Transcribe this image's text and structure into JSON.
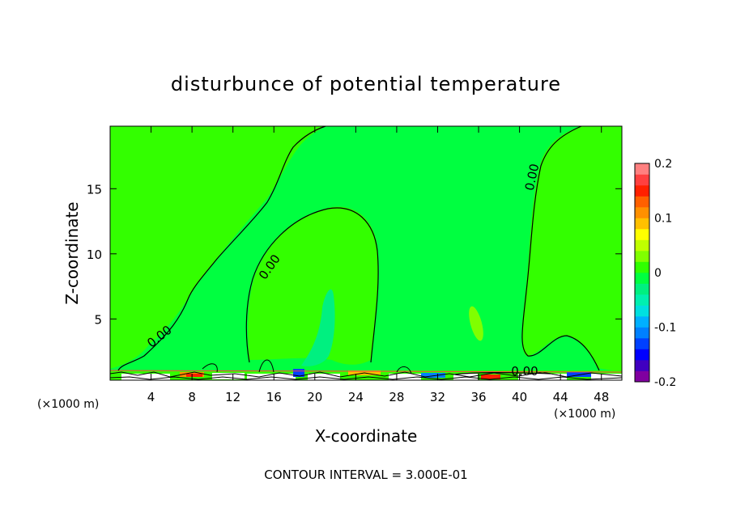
{
  "chart_data": {
    "type": "heatmap",
    "title": "disturbunce of potential temperature",
    "xlabel": "X-coordinate",
    "ylabel": "Z-coordinate",
    "x_unit_left": "(×1000 m)",
    "x_unit_right": "(×1000 m)",
    "footer": "CONTOUR INTERVAL = 3.000E-01",
    "xlim": [
      0,
      50
    ],
    "ylim": [
      0.3,
      19.8
    ],
    "x_ticks": [
      4,
      8,
      12,
      16,
      20,
      24,
      28,
      32,
      36,
      40,
      44,
      48
    ],
    "x_tick_labels": [
      "4",
      "8",
      "12",
      "16",
      "20",
      "24",
      "28",
      "32",
      "36",
      "40",
      "44",
      "48"
    ],
    "y_ticks": [
      5,
      10,
      15
    ],
    "y_tick_labels": [
      "5",
      "10",
      "15"
    ],
    "contour_labels": [
      "0.00",
      "0.00",
      "0.00",
      "0.00"
    ],
    "colorbar": {
      "min": -0.2,
      "max": 0.2,
      "tick_values": [
        -0.2,
        -0.1,
        0,
        0.1,
        0.2
      ],
      "tick_labels": [
        "-0.2",
        "-0.1",
        "0",
        "0.1",
        "0.2"
      ],
      "colors": [
        "#8000a0",
        "#4000c0",
        "#0000ff",
        "#0040ff",
        "#0080ff",
        "#00b0ff",
        "#00e0e0",
        "#00f0b0",
        "#00f080",
        "#00ff40",
        "#30ff00",
        "#80ff00",
        "#c0ff00",
        "#ffff00",
        "#ffc000",
        "#ff9000",
        "#ff6000",
        "#ff2000",
        "#ff4040",
        "#ff8080"
      ]
    },
    "background_color": "#00ff40",
    "regions": [
      {
        "name": "zero-region-left",
        "color": "#33ff00"
      },
      {
        "name": "negative-anomaly-center",
        "color": "#00f080"
      },
      {
        "name": "negative-anomaly-right",
        "color": "#80ff00"
      },
      {
        "name": "zero-region-right",
        "color": "#33ff00"
      }
    ]
  }
}
